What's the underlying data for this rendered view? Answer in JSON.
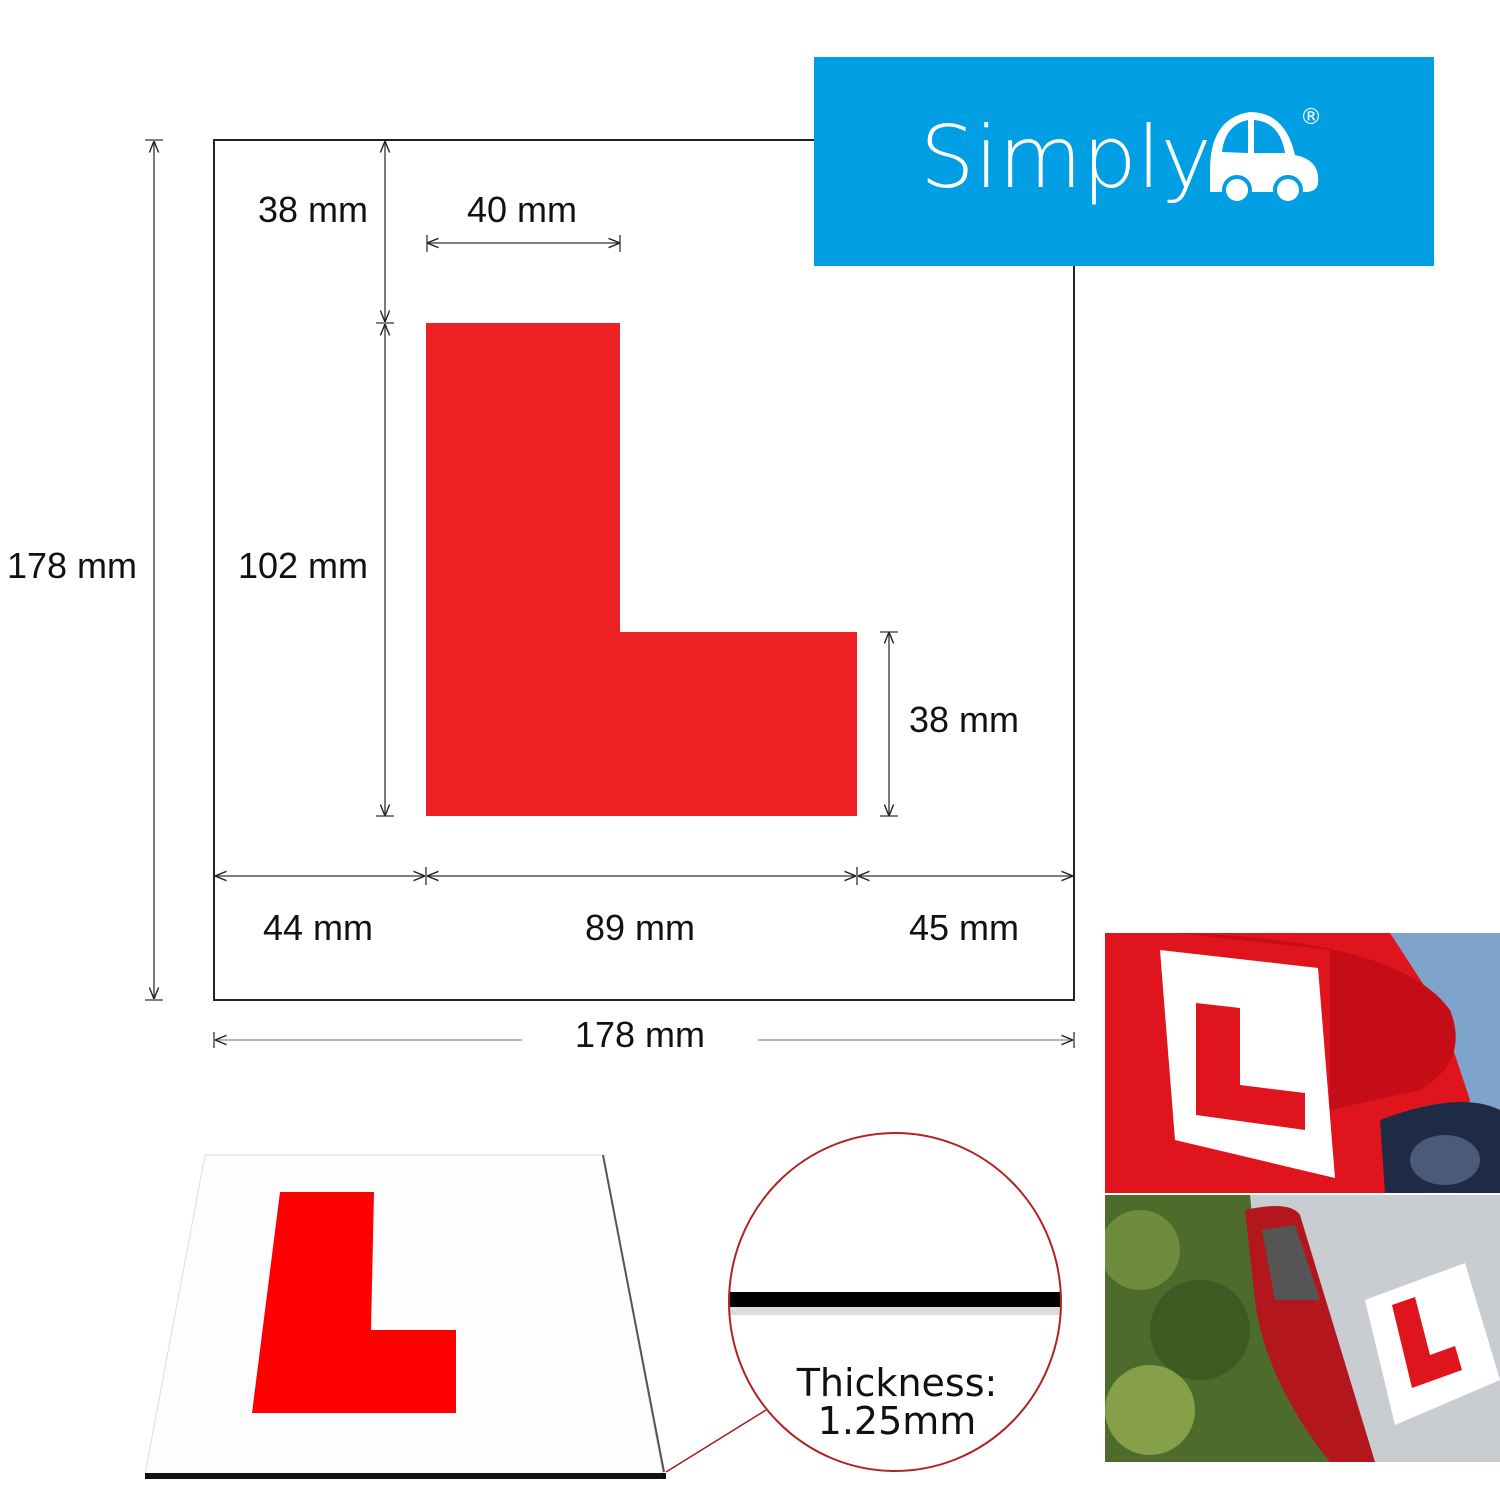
{
  "logo": {
    "brand": "Simply",
    "registered_mark": "®",
    "icon": "car-icon",
    "background_color": "#009fe3"
  },
  "diagram": {
    "plate_width": "178 mm",
    "plate_height": "178 mm",
    "top_margin": "38 mm",
    "stem_width": "40 mm",
    "l_height": "102 mm",
    "foot_height": "38 mm",
    "left_margin": "44 mm",
    "l_width": "89 mm",
    "right_margin": "45 mm",
    "l_color": "#ed2024"
  },
  "thickness": {
    "label": "Thickness:",
    "value": "1.25mm"
  },
  "photos": [
    {
      "icon": "car-rear-spoiler-photo"
    },
    {
      "icon": "car-rear-light-photo"
    }
  ]
}
